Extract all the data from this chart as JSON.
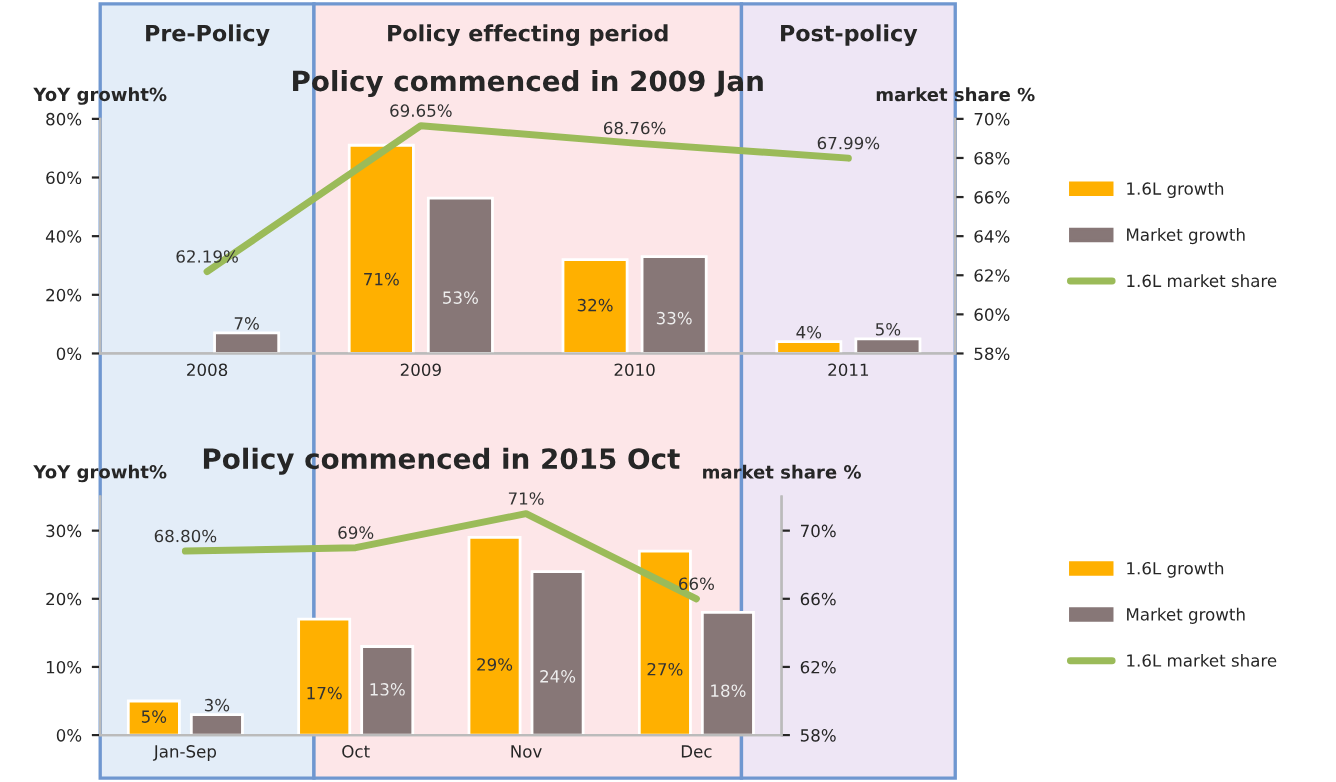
{
  "chart_data": [
    {
      "type": "bar",
      "title": "Policy commenced in 2009 Jan",
      "ylabel": "YoY growht%",
      "y2label": "market share %",
      "categories": [
        "2008",
        "2009",
        "2010",
        "2011"
      ],
      "series": [
        {
          "name": "1.6L growth",
          "color": "#ffb000",
          "values": [
            null,
            71,
            32,
            4
          ],
          "value_labels": [
            null,
            "71%",
            "32%",
            "4%"
          ]
        },
        {
          "name": "Market growth",
          "color": "#877777",
          "values": [
            7,
            53,
            33,
            5
          ],
          "value_labels": [
            "7%",
            "53%",
            "33%",
            "5%"
          ]
        },
        {
          "name": "1.6L market share",
          "type": "line",
          "axis": "y2",
          "color": "#9bbb59",
          "values": [
            62.19,
            69.65,
            68.76,
            67.99
          ],
          "value_labels": [
            "62.19%",
            "69.65%",
            "68.76%",
            "67.99%"
          ]
        }
      ],
      "ylim": [
        0,
        80
      ],
      "yticks": [
        {
          "value": 0,
          "label": "0%"
        },
        {
          "value": 20,
          "label": "20%"
        },
        {
          "value": 40,
          "label": "40%"
        },
        {
          "value": 60,
          "label": "60%"
        },
        {
          "value": 80,
          "label": "80%"
        }
      ],
      "y2lim": [
        58,
        70
      ],
      "y2ticks": [
        {
          "value": 58,
          "label": "58%"
        },
        {
          "value": 60,
          "label": "60%"
        },
        {
          "value": 62,
          "label": "62%"
        },
        {
          "value": 64,
          "label": "64%"
        },
        {
          "value": 66,
          "label": "66%"
        },
        {
          "value": 68,
          "label": "68%"
        },
        {
          "value": 70,
          "label": "70%"
        }
      ],
      "bands": [
        {
          "axis": "x",
          "from": "2008",
          "to": "2008",
          "label": "Pre-Policy",
          "color": "#e3edf8"
        },
        {
          "axis": "x",
          "from": "2009",
          "to": "2010",
          "label": "Policy effecting period",
          "color": "#fde6e8"
        },
        {
          "axis": "x",
          "from": "2011",
          "to": "2011",
          "label": "Post-policy",
          "color": "#eee6f5"
        }
      ],
      "legend": "right",
      "grid": false,
      "marker": "none",
      "line_style": "solid"
    },
    {
      "type": "bar",
      "title": "Policy commenced in 2015 Oct",
      "ylabel": "YoY growht%",
      "y2label": "market share %",
      "categories": [
        "Jan-Sep",
        "Oct",
        "Nov",
        "Dec"
      ],
      "series": [
        {
          "name": "1.6L growth",
          "color": "#ffb000",
          "values": [
            5,
            17,
            29,
            27
          ],
          "value_labels": [
            "5%",
            "17%",
            "29%",
            "27%"
          ]
        },
        {
          "name": "Market growth",
          "color": "#877777",
          "values": [
            3,
            13,
            24,
            18
          ],
          "value_labels": [
            "3%",
            "13%",
            "24%",
            "18%"
          ]
        },
        {
          "name": "1.6L market share",
          "type": "line",
          "axis": "y2",
          "color": "#9bbb59",
          "values": [
            68.8,
            69,
            71,
            66
          ],
          "value_labels": [
            "68.80%",
            "69%",
            "71%",
            "66%"
          ]
        }
      ],
      "ylim": [
        0,
        35
      ],
      "yticks": [
        {
          "value": 0,
          "label": "0%"
        },
        {
          "value": 10,
          "label": "10%"
        },
        {
          "value": 20,
          "label": "20%"
        },
        {
          "value": 30,
          "label": "30%"
        }
      ],
      "y2lim": [
        58,
        72
      ],
      "y2ticks": [
        {
          "value": 58,
          "label": "58%"
        },
        {
          "value": 62,
          "label": "62%"
        },
        {
          "value": 66,
          "label": "66%"
        },
        {
          "value": 70,
          "label": "70%"
        }
      ],
      "legend": "right",
      "grid": false,
      "marker": "none",
      "line_style": "solid"
    }
  ]
}
